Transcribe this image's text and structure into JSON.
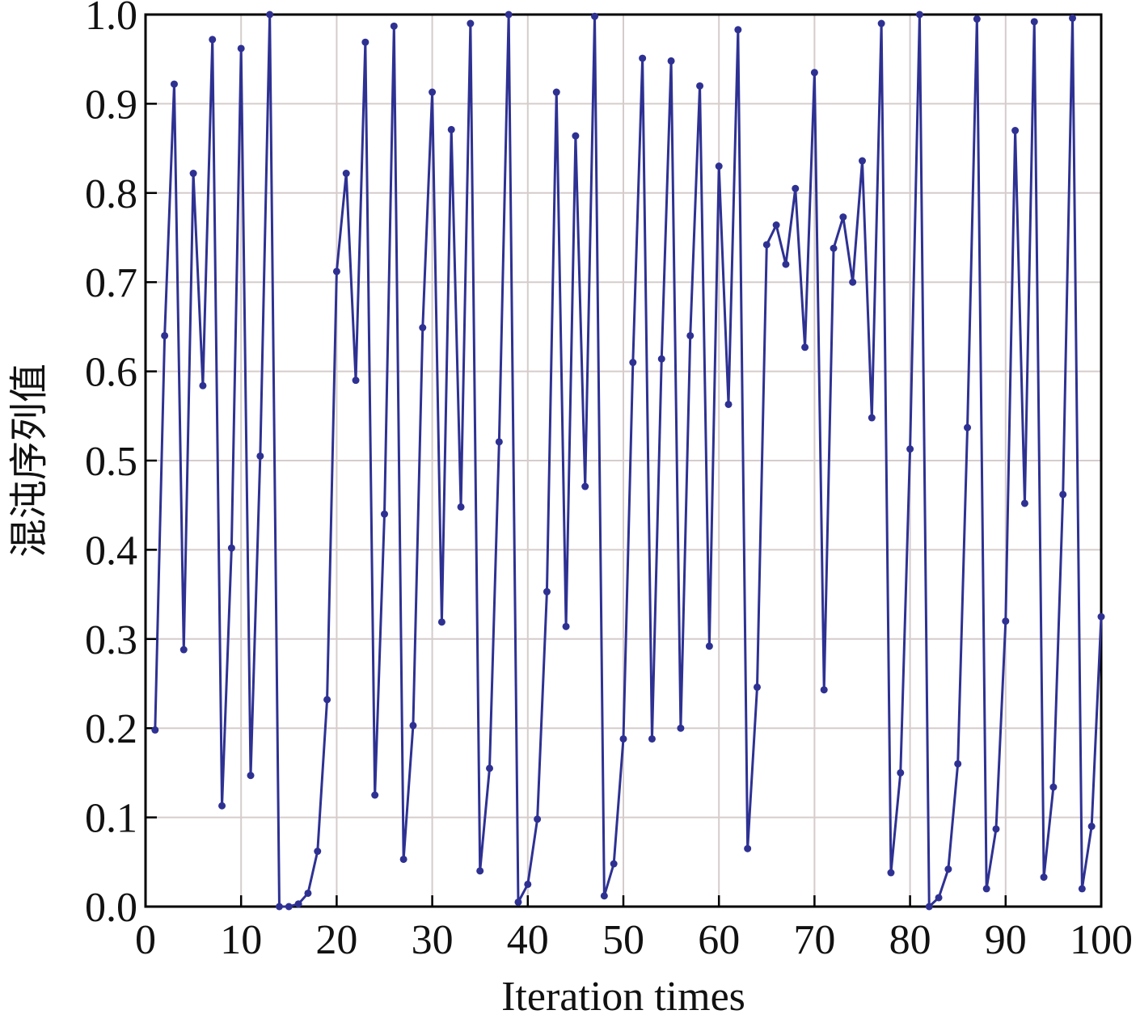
{
  "chart_data": {
    "type": "line",
    "x_label": "Iteration times",
    "y_label": "混沌序列值",
    "x": [
      1,
      2,
      3,
      4,
      5,
      6,
      7,
      8,
      9,
      10,
      11,
      12,
      13,
      14,
      15,
      16,
      17,
      18,
      19,
      20,
      21,
      22,
      23,
      24,
      25,
      26,
      27,
      28,
      29,
      30,
      31,
      32,
      33,
      34,
      35,
      36,
      37,
      38,
      39,
      40,
      41,
      42,
      43,
      44,
      45,
      46,
      47,
      48,
      49,
      50,
      51,
      52,
      53,
      54,
      55,
      56,
      57,
      58,
      59,
      60,
      61,
      62,
      63,
      64,
      65,
      66,
      67,
      68,
      69,
      70,
      71,
      72,
      73,
      74,
      75,
      76,
      77,
      78,
      79,
      80,
      81,
      82,
      83,
      84,
      85,
      86,
      87,
      88,
      89,
      90,
      91,
      92,
      93,
      94,
      95,
      96,
      97,
      98,
      99,
      100
    ],
    "series": [
      {
        "color": "#2e3192",
        "values": [
          0.198,
          0.64,
          0.922,
          0.288,
          0.822,
          0.584,
          0.972,
          0.113,
          0.402,
          0.962,
          0.147,
          0.505,
          1.0,
          0.0,
          0.0,
          0.003,
          0.015,
          0.062,
          0.232,
          0.712,
          0.822,
          0.59,
          0.969,
          0.125,
          0.44,
          0.987,
          0.053,
          0.203,
          0.649,
          0.913,
          0.319,
          0.871,
          0.448,
          0.99,
          0.04,
          0.155,
          0.521,
          1.0,
          0.005,
          0.025,
          0.098,
          0.353,
          0.913,
          0.314,
          0.864,
          0.471,
          0.998,
          0.012,
          0.048,
          0.188,
          0.61,
          0.951,
          0.188,
          0.614,
          0.948,
          0.2,
          0.64,
          0.92,
          0.292,
          0.83,
          0.563,
          0.983,
          0.065,
          0.246,
          0.742,
          0.764,
          0.72,
          0.805,
          0.627,
          0.935,
          0.243,
          0.738,
          0.773,
          0.7,
          0.836,
          0.548,
          0.99,
          0.038,
          0.15,
          0.513,
          1.0,
          0.0,
          0.01,
          0.042,
          0.16,
          0.537,
          0.995,
          0.02,
          0.087,
          0.32,
          0.87,
          0.452,
          0.992,
          0.033,
          0.134,
          0.462,
          0.996,
          0.02,
          0.09,
          0.325
        ]
      }
    ],
    "xlim": [
      0,
      100
    ],
    "ylim": [
      0,
      1
    ],
    "xticks": [
      0,
      10,
      20,
      30,
      40,
      50,
      60,
      70,
      80,
      90,
      100
    ],
    "yticks": [
      {
        "value": 0,
        "label": "0.0"
      },
      {
        "value": 0.1,
        "label": "0.1"
      },
      {
        "value": 0.2,
        "label": "0.2"
      },
      {
        "value": 0.3,
        "label": "0.3"
      },
      {
        "value": 0.4,
        "label": "0.4"
      },
      {
        "value": 0.5,
        "label": "0.5"
      },
      {
        "value": 0.6,
        "label": "0.6"
      },
      {
        "value": 0.7,
        "label": "0.7"
      },
      {
        "value": 0.8,
        "label": "0.8"
      },
      {
        "value": 0.9,
        "label": "0.9"
      },
      {
        "value": 1,
        "label": "1.0"
      }
    ],
    "grid": true
  }
}
